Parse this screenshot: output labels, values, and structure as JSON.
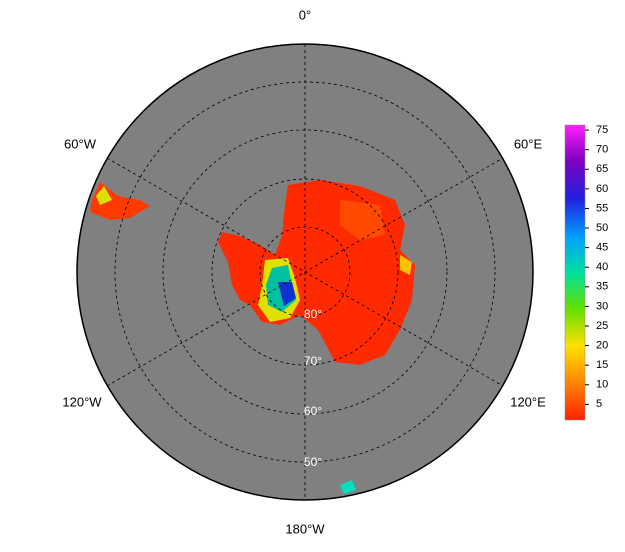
{
  "map": {
    "longitude_labels": [
      "0°",
      "60°E",
      "120°E",
      "180°W",
      "120°W",
      "60°W"
    ],
    "latitude_labels": [
      "80°",
      "70°",
      "60°",
      "50°"
    ],
    "colorbar": {
      "range": [
        1,
        76.3
      ],
      "ticks": [
        5,
        10,
        15,
        20,
        25,
        30,
        35,
        40,
        45,
        50,
        55,
        60,
        65,
        70,
        75
      ]
    }
  }
}
